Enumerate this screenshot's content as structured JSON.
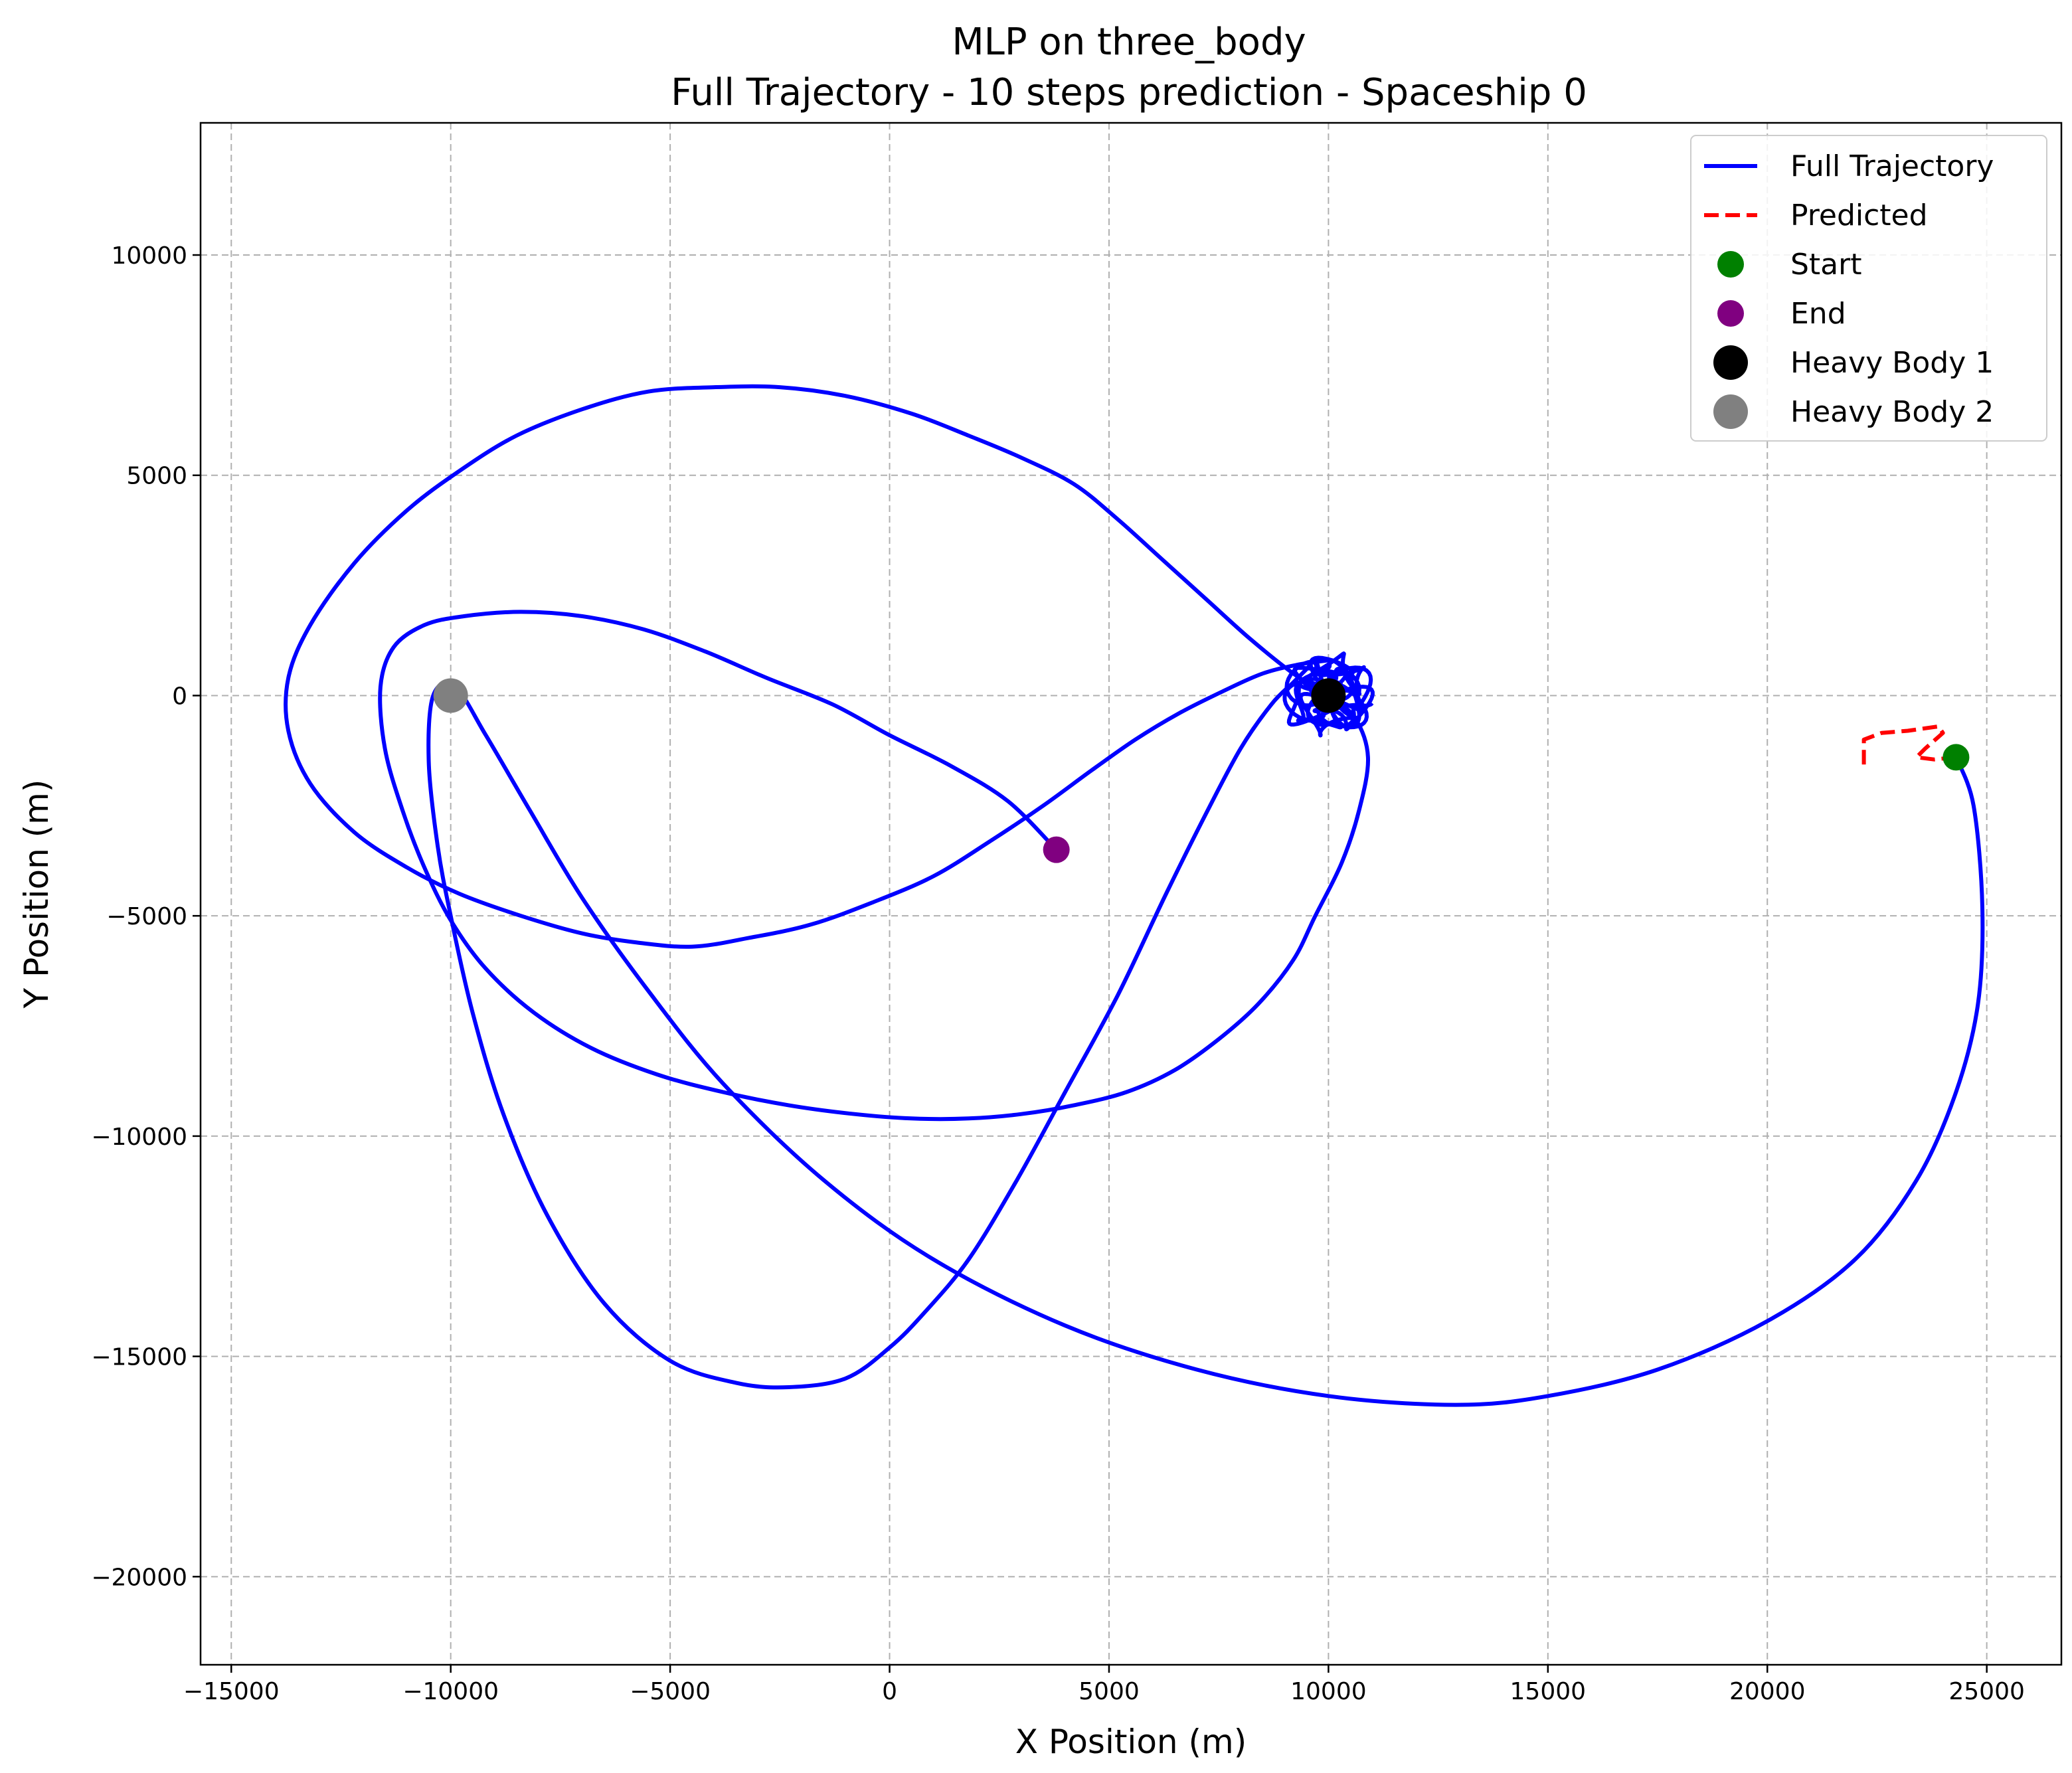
{
  "chart_data": {
    "type": "line",
    "title_line1": "MLP on three_body",
    "title_line2": "Full Trajectory - 10 steps prediction - Spaceship 0",
    "xlabel": "X Position (m)",
    "ylabel": "Y Position (m)",
    "xlim": [
      -15700,
      26700
    ],
    "ylim": [
      -22000,
      13000
    ],
    "xticks": [
      -15000,
      -10000,
      -5000,
      0,
      5000,
      10000,
      15000,
      20000,
      25000
    ],
    "yticks": [
      -20000,
      -15000,
      -10000,
      -5000,
      0,
      5000,
      10000
    ],
    "xtick_labels": [
      "−15000",
      "−10000",
      "−5000",
      "0",
      "5000",
      "10000",
      "15000",
      "20000",
      "25000"
    ],
    "ytick_labels": [
      "−20000",
      "−15000",
      "−10000",
      "−5000",
      "0",
      "5000",
      "10000"
    ],
    "grid": true,
    "legend_position": "top-right",
    "series": [
      {
        "name": "Full Trajectory",
        "color": "#0000ff",
        "style": "solid",
        "x": [
          24300,
          24700,
          24900,
          24800,
          24300,
          23400,
          22000,
          20000,
          17500,
          15000,
          12900,
          10000,
          7000,
          4000,
          1000,
          -1500,
          -3800,
          -5500,
          -7000,
          -8200,
          -9200,
          -9900,
          -10400,
          -10500,
          -10300,
          -10000,
          -9500,
          -8800,
          -7800,
          -6500,
          -5000,
          -3500,
          -2300,
          -1000,
          0,
          800,
          1800,
          2900,
          4000,
          5200,
          6300,
          7200,
          8000,
          8700,
          9200,
          9500,
          9700,
          9800,
          9900,
          10100,
          10400,
          10700,
          10500,
          10200,
          10000
        ],
        "y": [
          -1400,
          -2500,
          -4800,
          -7000,
          -9000,
          -11000,
          -12800,
          -14200,
          -15300,
          -15900,
          -16100,
          -15900,
          -15300,
          -14300,
          -12800,
          -11000,
          -8800,
          -6700,
          -4600,
          -2600,
          -900,
          200,
          0,
          -1500,
          -3400,
          -5000,
          -7200,
          -9500,
          -11800,
          -13800,
          -15100,
          -15600,
          -15700,
          -15500,
          -14800,
          -14000,
          -12800,
          -11000,
          -9000,
          -6800,
          -4500,
          -2700,
          -1200,
          -200,
          300,
          600,
          800,
          500,
          200,
          -400,
          -700,
          -500,
          300,
          600,
          0
        ]
      },
      {
        "name": "",
        "color": "#0000ff",
        "style": "solid",
        "x": [
          10000,
          9200,
          8200,
          7200,
          6200,
          5200,
          4200,
          3000,
          1800,
          500,
          -1000,
          -2500,
          -4000,
          -5500,
          -7000,
          -8500,
          -9800,
          -11000,
          -12200,
          -13200,
          -13700,
          -13700,
          -13200,
          -12200,
          -11000,
          -9800,
          -8400,
          -7000,
          -5800,
          -4500,
          -3200,
          -1800,
          -400,
          1000,
          2300,
          3500,
          4600,
          5600,
          6600,
          7600,
          8500,
          9300,
          10000
        ],
        "y": [
          0,
          500,
          1300,
          2200,
          3100,
          4000,
          4800,
          5400,
          5900,
          6400,
          6800,
          7000,
          7000,
          6900,
          6500,
          5900,
          5100,
          4200,
          3000,
          1600,
          400,
          -800,
          -2000,
          -3100,
          -3900,
          -4500,
          -5000,
          -5400,
          -5600,
          -5700,
          -5500,
          -5200,
          -4700,
          -4100,
          -3300,
          -2500,
          -1700,
          -1000,
          -400,
          100,
          500,
          700,
          800
        ]
      },
      {
        "name": "",
        "color": "#0000ff",
        "style": "solid",
        "x": [
          10000,
          10600,
          10900,
          10700,
          10300,
          9700,
          9200,
          8400,
          7500,
          6500,
          5400,
          4200,
          3000,
          1800,
          500,
          -800,
          -2300,
          -3800,
          -5300,
          -6800,
          -8100,
          -9200,
          -10000,
          -10600,
          -11100,
          -11500,
          -11600,
          -11300,
          -10600,
          -9700,
          -8400,
          -7000,
          -5600,
          -4200,
          -2800,
          -1300,
          0,
          1400,
          2700,
          3800
        ],
        "y": [
          0,
          -500,
          -1400,
          -2600,
          -3800,
          -5000,
          -6000,
          -7000,
          -7800,
          -8500,
          -9000,
          -9300,
          -9500,
          -9600,
          -9600,
          -9500,
          -9300,
          -9000,
          -8600,
          -8000,
          -7200,
          -6200,
          -5100,
          -3900,
          -2600,
          -1200,
          200,
          1100,
          1600,
          1800,
          1900,
          1800,
          1500,
          1000,
          400,
          -200,
          -900,
          -1600,
          -2400,
          -3500
        ]
      },
      {
        "name": "Predicted",
        "color": "#ff0000",
        "style": "dashed",
        "x": [
          24300,
          23800,
          23400,
          23600,
          24000,
          23900,
          23200,
          22600,
          22200,
          22200
        ],
        "y": [
          -1400,
          -1450,
          -1400,
          -1200,
          -850,
          -700,
          -800,
          -850,
          -1000,
          -1600
        ]
      }
    ],
    "wobble_cluster": {
      "center_x": 10000,
      "center_y": 0,
      "radius": 900,
      "color": "#0000ff"
    },
    "points": [
      {
        "name": "Start",
        "x": 24300,
        "y": -1400,
        "color": "#008000",
        "size": "small"
      },
      {
        "name": "End",
        "x": 3800,
        "y": -3500,
        "color": "#800080",
        "size": "small"
      },
      {
        "name": "Heavy Body 1",
        "x": 10000,
        "y": 0,
        "color": "#000000",
        "size": "large"
      },
      {
        "name": "Heavy Body 2",
        "x": -10000,
        "y": 0,
        "color": "#808080",
        "size": "large"
      }
    ],
    "legend": [
      {
        "label": "Full Trajectory",
        "kind": "line",
        "color": "#0000ff"
      },
      {
        "label": "Predicted",
        "kind": "dashed",
        "color": "#ff0000"
      },
      {
        "label": "Start",
        "kind": "dot-small",
        "color": "#008000"
      },
      {
        "label": "End",
        "kind": "dot-small",
        "color": "#800080"
      },
      {
        "label": "Heavy Body 1",
        "kind": "dot-large",
        "color": "#000000"
      },
      {
        "label": "Heavy Body 2",
        "kind": "dot-large",
        "color": "#808080"
      }
    ]
  }
}
